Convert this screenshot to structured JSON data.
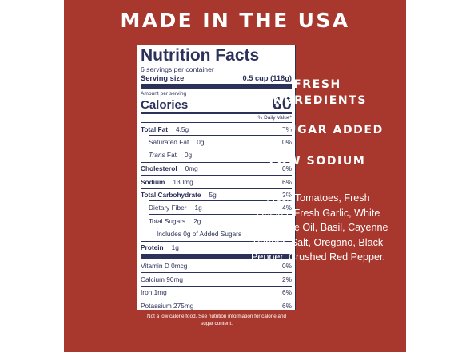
{
  "headline": "MADE IN THE USA",
  "nutrition_facts": {
    "title": "Nutrition Facts",
    "servings_per_container": "6 servings per container",
    "serving_size_label": "Serving size",
    "serving_size_value": "0.5 cup (118g)",
    "amount_per_serving": "Amount per serving",
    "calories_label": "Calories",
    "calories_value": "60",
    "daily_value_header": "% Daily Value*",
    "total_fat": {
      "label": "Total Fat",
      "amount": "4.5g",
      "dv": "7%"
    },
    "saturated_fat": {
      "label": "Saturated Fat",
      "amount": "0g",
      "dv": "0%"
    },
    "trans_fat": {
      "label_italic": "Trans",
      "label_rest": "Fat",
      "amount": "0g"
    },
    "cholesterol": {
      "label": "Cholesterol",
      "amount": "0mg",
      "dv": "0%"
    },
    "sodium": {
      "label": "Sodium",
      "amount": "130mg",
      "dv": "6%"
    },
    "total_carbohydrate": {
      "label": "Total Carbohydrate",
      "amount": "5g",
      "dv": "2%"
    },
    "dietary_fiber": {
      "label": "Dietary Fiber",
      "amount": "1g",
      "dv": "4%"
    },
    "total_sugars": {
      "label": "Total Sugars",
      "amount": "2g"
    },
    "added_sugars": {
      "label": "Includes 0g of Added Sugars"
    },
    "protein": {
      "label": "Protein",
      "amount": "1g"
    },
    "vitamins": [
      {
        "label": "Vitamin D 0mcg",
        "dv": "0%"
      },
      {
        "label": "Calcium 90mg",
        "dv": "2%"
      },
      {
        "label": "Iron 1mg",
        "dv": "6%"
      },
      {
        "label": "Potassium 275mg",
        "dv": "6%"
      }
    ]
  },
  "footnote": "Not a low calorie food. See nutrition information for calorie and sugar content.",
  "claims": {
    "fresh_ingredients": "FRESH INGREDIENTS",
    "no_sugar": "NO SUGAR ADDED",
    "low_sodium": "LOW SODIUM"
  },
  "ingredients": "Fresh Tomatoes, Fresh Onions, Fresh Garlic, White Wine, Olive Oil, Basil, Cayenne Pepper, Salt, Oregano, Black Pepper, Crushed Red Pepper.",
  "colors": {
    "panel_background": "#a8382d",
    "label_ink": "#2c315a",
    "page_background": "#ffffff"
  }
}
